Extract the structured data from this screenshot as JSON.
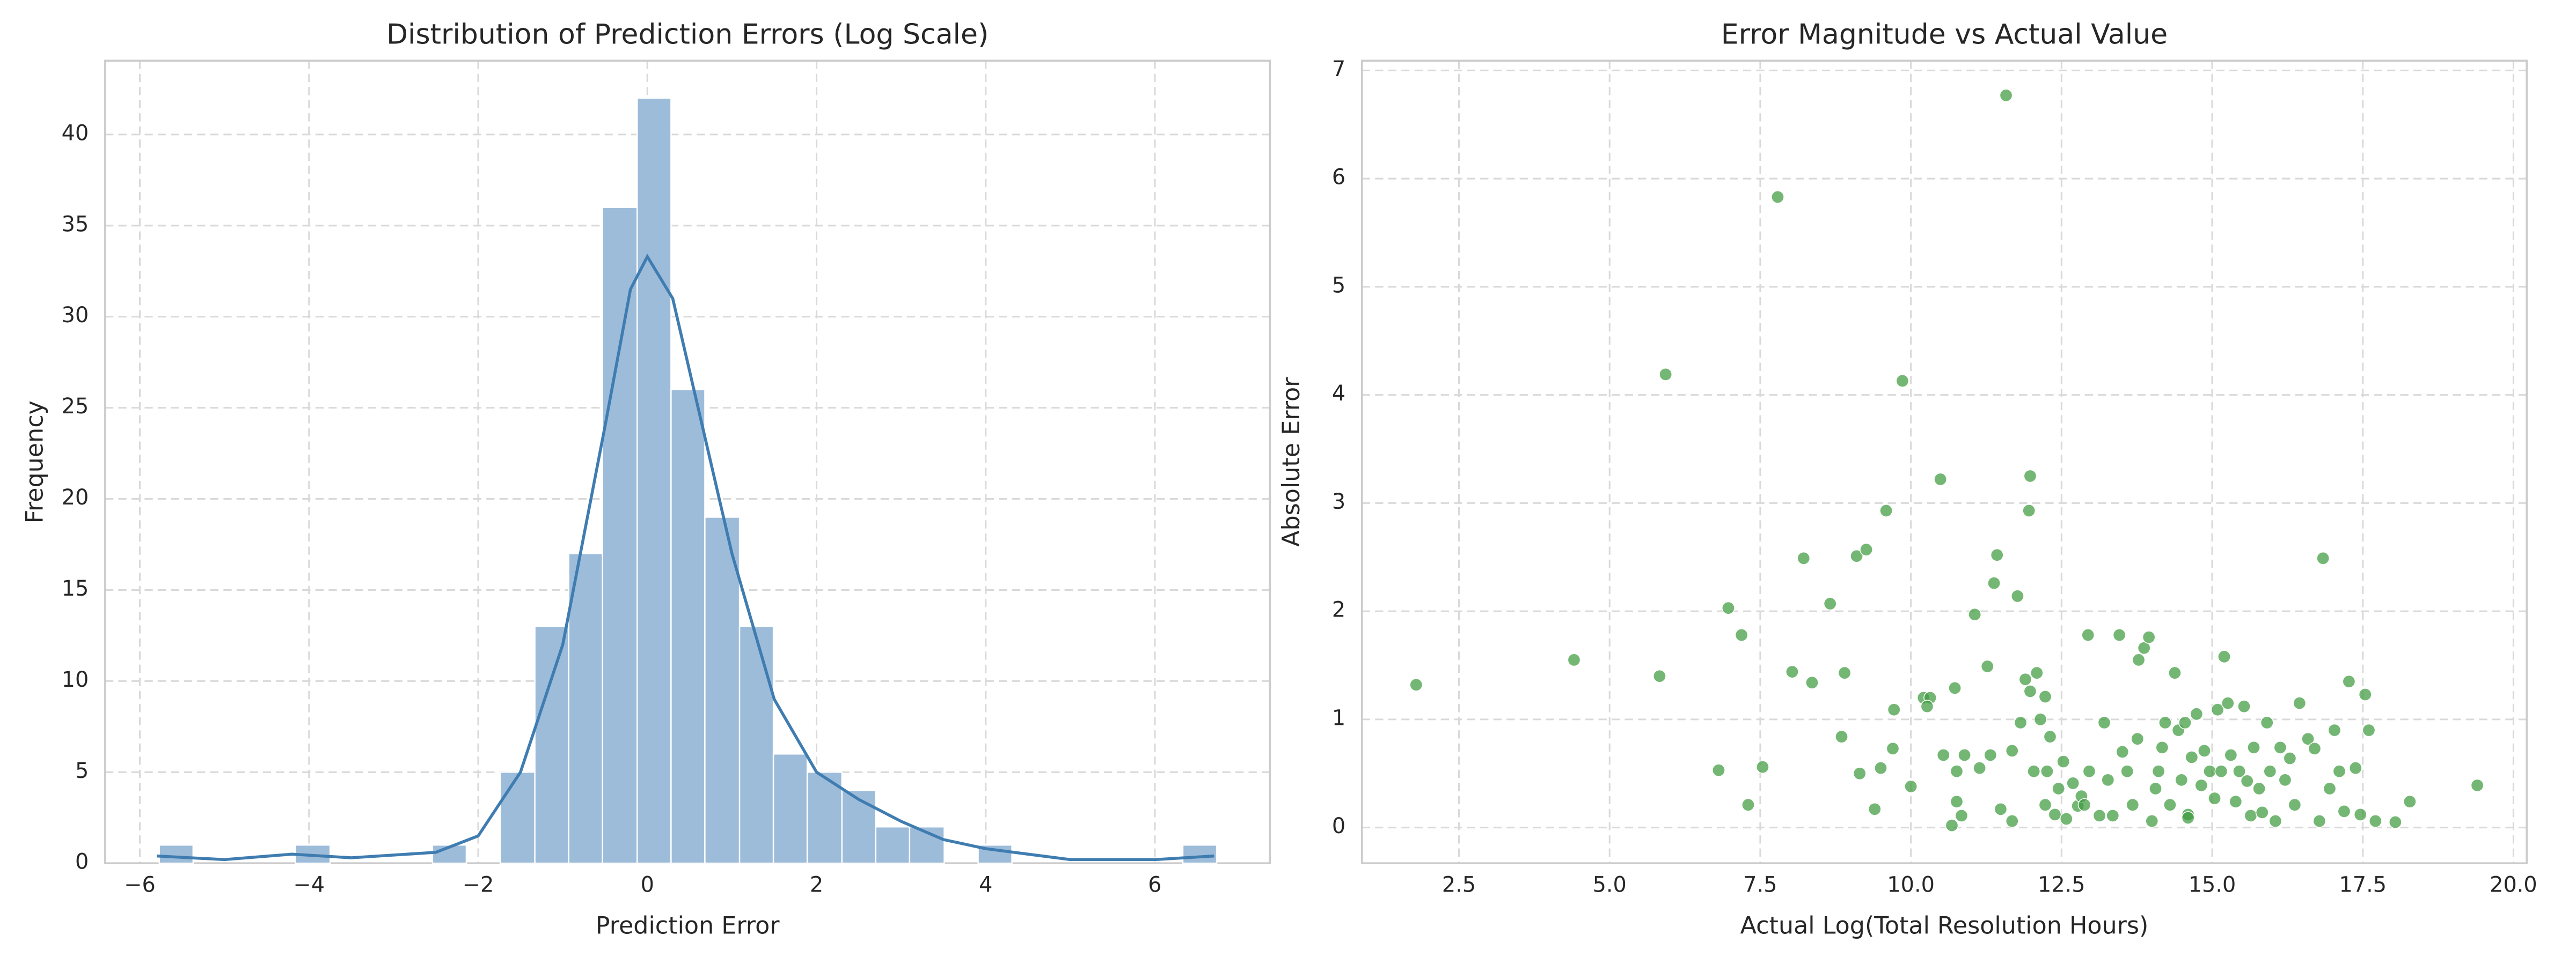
{
  "chart_data": [
    {
      "type": "histogram",
      "title": "Distribution of Prediction Errors (Log Scale)",
      "xlabel": "Prediction Error",
      "ylabel": "Frequency",
      "bins": [
        -5.77,
        -5.37,
        -4.96,
        -4.56,
        -4.16,
        -3.75,
        -3.35,
        -2.95,
        -2.54,
        -2.14,
        -1.74,
        -1.33,
        -0.93,
        -0.53,
        -0.12,
        0.28,
        0.68,
        1.09,
        1.49,
        1.89,
        2.3,
        2.7,
        3.1,
        3.51,
        3.91,
        4.31,
        4.72,
        5.12,
        5.52,
        5.93,
        6.33,
        6.73
      ],
      "values": [
        1,
        0,
        0,
        0,
        1,
        0,
        0,
        0,
        1,
        0,
        5,
        13,
        17,
        36,
        42,
        26,
        19,
        13,
        6,
        5,
        4,
        2,
        2,
        0,
        1,
        0,
        0,
        0,
        0,
        0,
        1
      ],
      "color": "#9dbcda",
      "kde": {
        "color": "#3f7cb0",
        "x": [
          -5.8,
          -5.0,
          -4.2,
          -3.5,
          -2.5,
          -2.0,
          -1.5,
          -1.0,
          -0.5,
          -0.2,
          0.0,
          0.3,
          0.6,
          1.0,
          1.5,
          2.0,
          2.5,
          3.0,
          3.5,
          4.0,
          4.5,
          5.0,
          5.5,
          6.0,
          6.7
        ],
        "values": [
          0.4,
          0.2,
          0.5,
          0.3,
          0.6,
          1.5,
          5,
          12,
          24,
          31.5,
          33.3,
          31,
          25,
          17,
          9,
          5,
          3.5,
          2.3,
          1.3,
          0.8,
          0.5,
          0.2,
          0.2,
          0.2,
          0.4
        ]
      },
      "xlim": [
        -6.41,
        7.36
      ],
      "ylim": [
        0,
        44.05
      ],
      "xticks": [
        {
          "value": -6,
          "label": "−6"
        },
        {
          "value": -4,
          "label": "−4"
        },
        {
          "value": -2,
          "label": "−2"
        },
        0,
        2,
        4,
        6
      ],
      "yticks": [
        0,
        5,
        10,
        15,
        20,
        25,
        30,
        35,
        40
      ],
      "grid": true
    },
    {
      "type": "scatter",
      "title": "Error Magnitude vs Actual Value",
      "xlabel": "Actual Log(Total Resolution Hours)",
      "ylabel": "Absolute Error",
      "color": "#3e9b3e",
      "x": [
        1.79,
        4.41,
        5.93,
        5.83,
        7.79,
        6.97,
        7.19,
        6.81,
        7.3,
        7.54,
        8.03,
        8.22,
        8.36,
        8.66,
        8.9,
        8.85,
        9.1,
        9.26,
        9.15,
        9.4,
        9.5,
        9.59,
        9.7,
        9.72,
        9.86,
        10.0,
        10.21,
        10.32,
        10.27,
        10.49,
        10.54,
        10.73,
        10.76,
        10.84,
        10.68,
        10.89,
        11.06,
        11.14,
        11.27,
        11.32,
        11.38,
        11.43,
        11.58,
        11.49,
        11.68,
        11.77,
        11.9,
        11.96,
        11.98,
        11.98,
        12.04,
        12.09,
        12.15,
        12.23,
        12.26,
        12.31,
        12.39,
        12.45,
        12.53,
        12.58,
        12.69,
        12.77,
        12.83,
        12.94,
        12.88,
        12.96,
        13.13,
        13.21,
        13.27,
        13.35,
        13.46,
        13.51,
        13.59,
        13.68,
        13.76,
        13.78,
        13.87,
        13.95,
        14.0,
        14.06,
        14.11,
        14.17,
        14.22,
        14.3,
        14.38,
        14.44,
        14.49,
        14.55,
        14.6,
        14.66,
        14.74,
        14.82,
        14.87,
        14.96,
        15.04,
        15.09,
        15.15,
        15.2,
        15.26,
        15.31,
        15.39,
        15.45,
        15.53,
        15.58,
        15.64,
        15.69,
        15.78,
        15.83,
        15.91,
        15.96,
        16.05,
        16.13,
        16.21,
        16.29,
        16.37,
        16.45,
        16.59,
        16.7,
        16.78,
        16.84,
        16.95,
        17.03,
        17.11,
        17.19,
        17.27,
        17.38,
        17.46,
        17.54,
        17.6,
        17.71,
        18.04,
        18.28,
        19.4,
        11.82,
        11.68,
        12.23,
        10.76,
        14.6
      ],
      "values": [
        1.32,
        1.55,
        4.19,
        1.4,
        5.83,
        2.03,
        1.78,
        0.53,
        0.21,
        0.56,
        1.44,
        2.49,
        1.34,
        2.07,
        1.43,
        0.84,
        2.51,
        2.57,
        0.5,
        0.17,
        0.55,
        2.93,
        0.73,
        1.09,
        4.13,
        0.38,
        1.2,
        1.2,
        1.12,
        3.22,
        0.67,
        1.29,
        0.24,
        0.11,
        0.02,
        0.67,
        1.97,
        0.55,
        1.49,
        0.67,
        2.26,
        2.52,
        6.77,
        0.17,
        0.71,
        2.14,
        1.37,
        2.93,
        3.25,
        1.26,
        0.52,
        1.43,
        1.0,
        1.21,
        0.52,
        0.84,
        0.12,
        0.36,
        0.61,
        0.08,
        0.41,
        0.2,
        0.29,
        1.78,
        0.21,
        0.52,
        0.11,
        0.97,
        0.44,
        0.11,
        1.78,
        0.7,
        0.52,
        0.21,
        0.82,
        1.55,
        1.66,
        1.76,
        0.06,
        0.36,
        0.52,
        0.74,
        0.97,
        0.21,
        1.43,
        0.9,
        0.44,
        0.97,
        0.12,
        0.65,
        1.05,
        0.39,
        0.71,
        0.52,
        0.27,
        1.09,
        0.52,
        1.58,
        1.15,
        0.67,
        0.24,
        0.52,
        1.12,
        0.43,
        0.11,
        0.74,
        0.36,
        0.14,
        0.97,
        0.52,
        0.06,
        0.74,
        0.44,
        0.64,
        0.21,
        1.15,
        0.82,
        0.73,
        0.06,
        2.49,
        0.36,
        0.9,
        0.52,
        0.15,
        1.35,
        0.55,
        0.12,
        1.23,
        0.9,
        0.06,
        0.05,
        0.24,
        0.39,
        0.97,
        0.06,
        0.21,
        0.52,
        0.09
      ],
      "xlim": [
        0.89,
        20.22
      ],
      "ylim": [
        -0.33,
        7.09
      ],
      "xticks": [
        2.5,
        {
          "value": 5,
          "label": "5.0"
        },
        7.5,
        {
          "value": 10,
          "label": "10.0"
        },
        12.5,
        {
          "value": 15,
          "label": "15.0"
        },
        17.5,
        {
          "value": 20,
          "label": "20.0"
        }
      ],
      "yticks": [
        0,
        1,
        2,
        3,
        4,
        5,
        6,
        7
      ],
      "grid": true
    }
  ]
}
